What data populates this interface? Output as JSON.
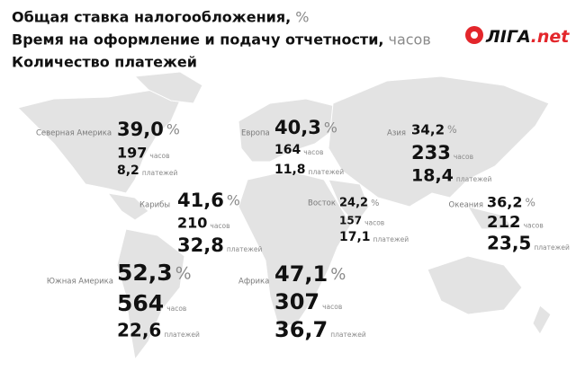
{
  "header": {
    "lines": [
      {
        "text": "Общая ставка налогообложения,",
        "unit": "%"
      },
      {
        "text": "Время на оформление и подачу отчетности,",
        "unit": "часов"
      },
      {
        "text": "Количество платежей"
      }
    ]
  },
  "logo": {
    "name": "ЛIГА",
    "suffix": ".net"
  },
  "units": {
    "percent": "%",
    "hours": "часов",
    "payments": "платежей"
  },
  "regions": [
    {
      "name": "Северная Америка",
      "tax": "39,0",
      "hours": "197",
      "payments": "8,2"
    },
    {
      "name": "Европа",
      "tax": "40,3",
      "hours": "164",
      "payments": "11,8"
    },
    {
      "name": "Азия",
      "tax": "34,2",
      "hours": "233",
      "payments": "18,4"
    },
    {
      "name": "Карибы",
      "tax": "41,6",
      "hours": "210",
      "payments": "32,8"
    },
    {
      "name": "Восток",
      "tax": "24,2",
      "hours": "157",
      "payments": "17,1"
    },
    {
      "name": "Океания",
      "tax": "36,2",
      "hours": "212",
      "payments": "23,5"
    },
    {
      "name": "Южная Америка",
      "tax": "52,3",
      "hours": "564",
      "payments": "22,6"
    },
    {
      "name": "Африка",
      "tax": "47,1",
      "hours": "307",
      "payments": "36,7"
    }
  ]
}
